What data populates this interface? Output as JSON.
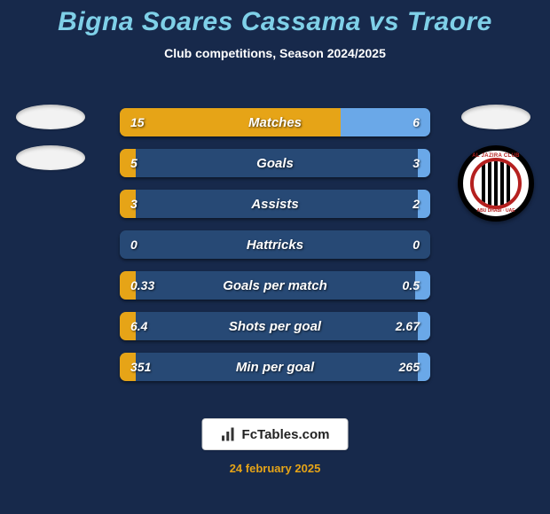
{
  "background_color": "#17294b",
  "title": {
    "text": "Bigna Soares Cassama vs Traore",
    "color": "#7fd0e8",
    "fontsize": 30
  },
  "subtitle": {
    "text": "Club competitions, Season 2024/2025",
    "color": "#ffffff",
    "fontsize": 14
  },
  "left_player": {
    "badges": [
      "ellipse",
      "ellipse"
    ]
  },
  "right_player": {
    "badges": [
      "ellipse",
      "club-crest"
    ],
    "club_name_top": "AL JAZIRA CLUB",
    "club_name_bottom": "ABU DHABI · UAE"
  },
  "bar_track_color": "#274975",
  "bar_left_color": "#e6a417",
  "bar_right_color": "#6aa8e8",
  "rows": [
    {
      "label": "Matches",
      "left": "15",
      "right": "6",
      "left_pct": 71,
      "right_pct": 29
    },
    {
      "label": "Goals",
      "left": "5",
      "right": "3",
      "left_pct": 5,
      "right_pct": 4
    },
    {
      "label": "Assists",
      "left": "3",
      "right": "2",
      "left_pct": 5,
      "right_pct": 4
    },
    {
      "label": "Hattricks",
      "left": "0",
      "right": "0",
      "left_pct": 0,
      "right_pct": 0
    },
    {
      "label": "Goals per match",
      "left": "0.33",
      "right": "0.5",
      "left_pct": 5,
      "right_pct": 5
    },
    {
      "label": "Shots per goal",
      "left": "6.4",
      "right": "2.67",
      "left_pct": 5,
      "right_pct": 4
    },
    {
      "label": "Min per goal",
      "left": "351",
      "right": "265",
      "left_pct": 5,
      "right_pct": 4
    }
  ],
  "footer": {
    "brand": "FcTables.com",
    "date": "24 february 2025",
    "date_color": "#e6a417"
  }
}
